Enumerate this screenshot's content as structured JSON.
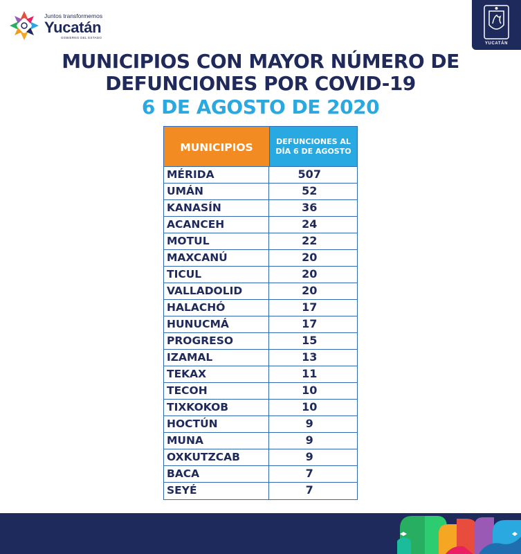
{
  "branding": {
    "tagline": "Juntos transformemos",
    "name": "Yucatán",
    "government": "GOBIERNO DEL ESTADO",
    "seal_label": "YUCATÁN"
  },
  "title": {
    "line1": "MUNICIPIOS CON MAYOR NÚMERO DE",
    "line2": "DEFUNCIONES POR COVID-19",
    "date": "6 DE AGOSTO DE 2020"
  },
  "table": {
    "header_municipality": "MUNICIPIOS",
    "header_deaths": "DEFUNCIONES AL DÍA 6 DE AGOSTO",
    "rows": [
      {
        "municipio": "MÉRIDA",
        "defunciones": "507"
      },
      {
        "municipio": "UMÁN",
        "defunciones": "52"
      },
      {
        "municipio": "KANASÍN",
        "defunciones": "36"
      },
      {
        "municipio": "ACANCEH",
        "defunciones": "24"
      },
      {
        "municipio": "MOTUL",
        "defunciones": "22"
      },
      {
        "municipio": "MAXCANÚ",
        "defunciones": "20"
      },
      {
        "municipio": "TICUL",
        "defunciones": "20"
      },
      {
        "municipio": "VALLADOLID",
        "defunciones": "20"
      },
      {
        "municipio": "HALACHÓ",
        "defunciones": "17"
      },
      {
        "municipio": "HUNUCMÁ",
        "defunciones": "17"
      },
      {
        "municipio": "PROGRESO",
        "defunciones": "15"
      },
      {
        "municipio": "IZAMAL",
        "defunciones": "13"
      },
      {
        "municipio": "TEKAX",
        "defunciones": "11"
      },
      {
        "municipio": "TECOH",
        "defunciones": "10"
      },
      {
        "municipio": "TIXKOKOB",
        "defunciones": "10"
      },
      {
        "municipio": "HOCTÚN",
        "defunciones": "9"
      },
      {
        "municipio": "MUNA",
        "defunciones": "9"
      },
      {
        "municipio": "OXKUTZCAB",
        "defunciones": "9"
      },
      {
        "municipio": "BACA",
        "defunciones": "7"
      },
      {
        "municipio": "SEYÉ",
        "defunciones": "7"
      }
    ]
  },
  "colors": {
    "navy": "#1f2a5a",
    "accent_blue": "#2aa8e0",
    "header_orange": "#f28b22",
    "grid_blue": "#2f69b3"
  }
}
